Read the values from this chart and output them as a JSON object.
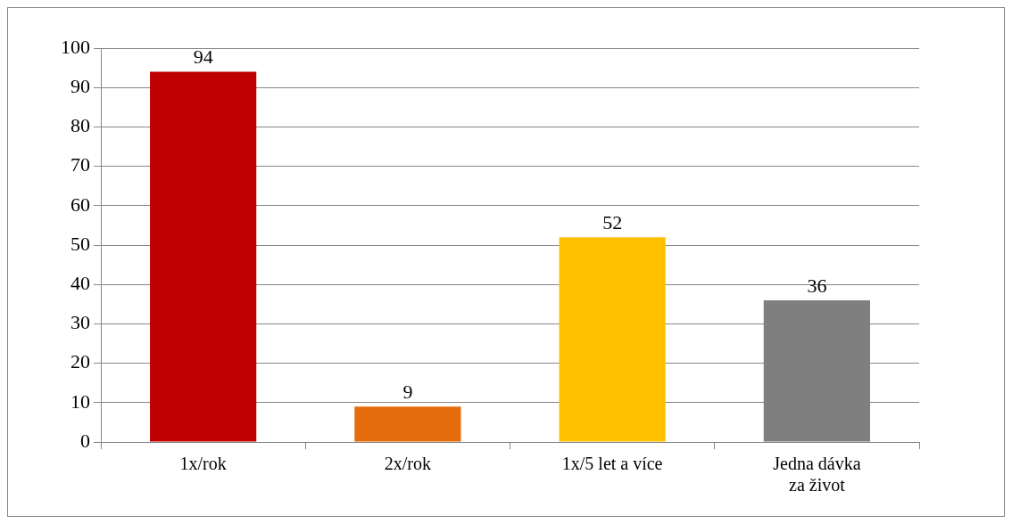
{
  "chart_data": {
    "type": "bar",
    "categories": [
      "1x/rok",
      "2x/rok",
      "1x/5 let a více",
      "Jedna dávka za život"
    ],
    "values": [
      94,
      9,
      52,
      36
    ],
    "colors": [
      "#c00000",
      "#e46c0a",
      "#ffc000",
      "#7f7f7f"
    ],
    "ylim": [
      0,
      100
    ],
    "yticks": [
      0,
      10,
      20,
      30,
      40,
      50,
      60,
      70,
      80,
      90,
      100
    ],
    "grid": "y",
    "legend": false,
    "data_labels": true
  }
}
